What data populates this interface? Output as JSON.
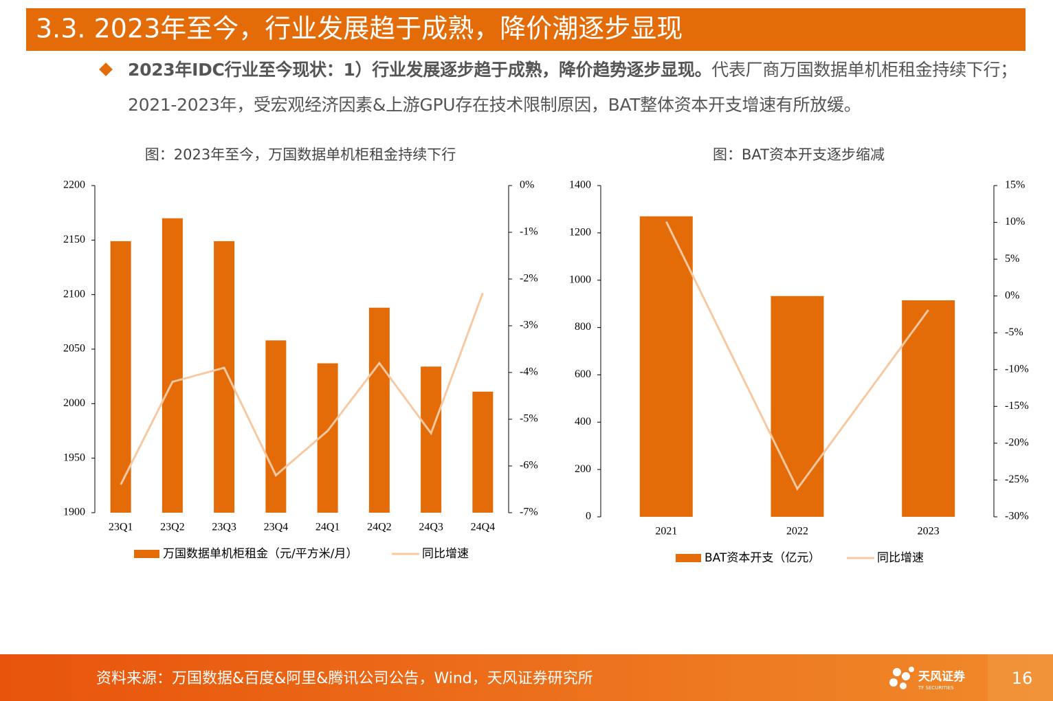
{
  "header": {
    "title": "3.3. 2023年至今，行业发展趋于成熟，降价潮逐步显现"
  },
  "bullet": {
    "bold": "2023年IDC行业至今现状：1）行业发展逐步趋于成熟，降价趋势逐步显现。",
    "text": "代表厂商万国数据单机柜租金持续下行；2021-2023年，受宏观经济因素&上游GPU存在技术限制原因，BAT整体资本开支增速有所放缓。"
  },
  "chart_data": [
    {
      "type": "bar",
      "title": "图：2023年至今，万国数据单机柜租金持续下行",
      "categories": [
        "23Q1",
        "23Q2",
        "23Q3",
        "23Q4",
        "24Q1",
        "24Q2",
        "24Q3",
        "24Q4"
      ],
      "series": [
        {
          "name": "万国数据单机柜租金（元/平方米/月）",
          "type": "bar",
          "color": "#e36c09",
          "values": [
            2149,
            2170,
            2149,
            2058,
            2037,
            2088,
            2034,
            2011
          ]
        },
        {
          "name": "同比增速",
          "type": "line",
          "axis": "y2",
          "color": "#f8c8a0",
          "values": [
            -6.4,
            -4.2,
            -3.9,
            -6.2,
            -5.25,
            -3.8,
            -5.3,
            -2.3
          ]
        }
      ],
      "ylim": [
        1900,
        2200
      ],
      "yticks": [
        1900,
        1950,
        2000,
        2050,
        2100,
        2150,
        2200
      ],
      "y2lim": [
        -7,
        0
      ],
      "y2ticks": [
        {
          "value": -7,
          "label": "-7%"
        },
        {
          "value": -6,
          "label": "-6%"
        },
        {
          "value": -5,
          "label": "-5%"
        },
        {
          "value": -4,
          "label": "-4%"
        },
        {
          "value": -3,
          "label": "-3%"
        },
        {
          "value": -2,
          "label": "-2%"
        },
        {
          "value": -1,
          "label": "-1%"
        },
        {
          "value": 0,
          "label": "0%"
        }
      ]
    },
    {
      "type": "bar",
      "title": "图：BAT资本开支逐步缩减",
      "categories": [
        "2021",
        "2022",
        "2023"
      ],
      "series": [
        {
          "name": "BAT资本开支（亿元）",
          "type": "bar",
          "color": "#e36c09",
          "values": [
            1270,
            933,
            915
          ]
        },
        {
          "name": "同比增速",
          "type": "line",
          "axis": "y2",
          "color": "#f8c8a0",
          "values": [
            10.1,
            -26.2,
            -1.9
          ]
        }
      ],
      "ylim": [
        0,
        1400
      ],
      "yticks": [
        0,
        200,
        400,
        600,
        800,
        1000,
        1200,
        1400
      ],
      "y2lim": [
        -30,
        15
      ],
      "y2ticks": [
        {
          "value": -30,
          "label": "-30%"
        },
        {
          "value": -25,
          "label": "-25%"
        },
        {
          "value": -20,
          "label": "-20%"
        },
        {
          "value": -15,
          "label": "-15%"
        },
        {
          "value": -10,
          "label": "-10%"
        },
        {
          "value": -5,
          "label": "-5%"
        },
        {
          "value": 0,
          "label": "0%"
        },
        {
          "value": 5,
          "label": "5%"
        },
        {
          "value": 10,
          "label": "10%"
        },
        {
          "value": 15,
          "label": "15%"
        }
      ]
    }
  ],
  "footer": {
    "source": "资料来源：万国数据&百度&阿里&腾讯公司公告，Wind，天风证券研究所",
    "logo": "天风证券",
    "logo_sub": "TF SECURITIES",
    "page": "16"
  }
}
